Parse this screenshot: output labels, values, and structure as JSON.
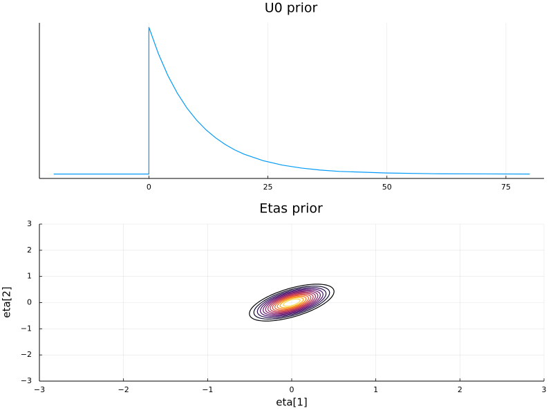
{
  "chart_data": [
    {
      "type": "line",
      "title": "U0 prior",
      "x": [
        -20,
        0,
        0,
        2,
        4,
        6,
        8,
        10,
        12,
        14,
        16,
        18,
        20,
        24,
        28,
        32,
        36,
        40,
        50,
        60,
        70,
        80
      ],
      "series": [
        {
          "color": "#009af9",
          "values": [
            0,
            0,
            0.1,
            0.0819,
            0.067,
            0.0549,
            0.0449,
            0.0368,
            0.0301,
            0.0247,
            0.0202,
            0.0165,
            0.0135,
            0.0091,
            0.0061,
            0.0041,
            0.0027,
            0.0018,
            0.0007,
            0.0002,
            0.0001,
            0
          ]
        }
      ],
      "xlim": [
        -23,
        83
      ],
      "xticks": [
        0,
        25,
        50,
        75
      ],
      "ylim": [
        -0.003,
        0.103
      ],
      "grid": true
    },
    {
      "type": "contour",
      "title": "Etas prior",
      "x_label": "eta[1]",
      "y_label": "eta[2]",
      "mean": [
        0,
        0
      ],
      "cov": [
        [
          0.0625,
          0.0525
        ],
        [
          0.0525,
          0.1225
        ]
      ],
      "contours": [
        {
          "level": 0.3,
          "color": "#000004"
        },
        {
          "level": 0.45,
          "color": "#0d0829"
        },
        {
          "level": 0.6,
          "color": "#280b53"
        },
        {
          "level": 0.75,
          "color": "#470b6a"
        },
        {
          "level": 0.9,
          "color": "#65156e"
        },
        {
          "level": 1.05,
          "color": "#82206c"
        },
        {
          "level": 1.2,
          "color": "#9f2a63"
        },
        {
          "level": 1.35,
          "color": "#bc3754"
        },
        {
          "level": 1.5,
          "color": "#d44842"
        },
        {
          "level": 1.65,
          "color": "#e8602d"
        },
        {
          "level": 1.8,
          "color": "#f57d15"
        },
        {
          "level": 1.95,
          "color": "#fca50a"
        },
        {
          "level": 2.1,
          "color": "#f6d746"
        }
      ],
      "xlim": [
        -3,
        3
      ],
      "ylim": [
        -3,
        3
      ],
      "xticks": [
        {
          "value": -3,
          "label": "−3"
        },
        {
          "value": -2,
          "label": "−2"
        },
        {
          "value": -1,
          "label": "−1"
        },
        0,
        1,
        2,
        3
      ],
      "yticks": [
        {
          "value": -3,
          "label": "−3"
        },
        {
          "value": -2,
          "label": "−2"
        },
        {
          "value": -1,
          "label": "−1"
        },
        0,
        1,
        2,
        3
      ],
      "grid": true
    }
  ]
}
